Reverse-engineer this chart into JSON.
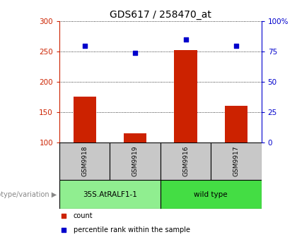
{
  "title": "GDS617 / 258470_at",
  "samples": [
    "GSM9918",
    "GSM9919",
    "GSM9916",
    "GSM9917"
  ],
  "counts": [
    175,
    115,
    252,
    160
  ],
  "percentiles": [
    80,
    74,
    85,
    80
  ],
  "ylim_left": [
    100,
    300
  ],
  "ylim_right": [
    0,
    100
  ],
  "yticks_left": [
    100,
    150,
    200,
    250,
    300
  ],
  "yticks_right": [
    0,
    25,
    50,
    75,
    100
  ],
  "yticklabels_right": [
    "0",
    "25",
    "50",
    "75",
    "100%"
  ],
  "bar_color": "#cc2200",
  "scatter_color": "#0000cc",
  "groups": [
    {
      "label": "35S.AtRALF1-1",
      "samples": [
        0,
        1
      ],
      "color": "#90ee90"
    },
    {
      "label": "wild type",
      "samples": [
        2,
        3
      ],
      "color": "#44dd44"
    }
  ],
  "group_label_prefix": "genotype/variation",
  "legend_items": [
    {
      "label": "count",
      "color": "#cc2200"
    },
    {
      "label": "percentile rank within the sample",
      "color": "#0000cc"
    }
  ],
  "bar_color_left_spine": "#cc2200",
  "right_spine_color": "#0000cc",
  "sample_box_color": "#c8c8c8",
  "bar_width": 0.45,
  "title_fontsize": 10,
  "tick_fontsize": 7.5,
  "label_fontsize": 7
}
